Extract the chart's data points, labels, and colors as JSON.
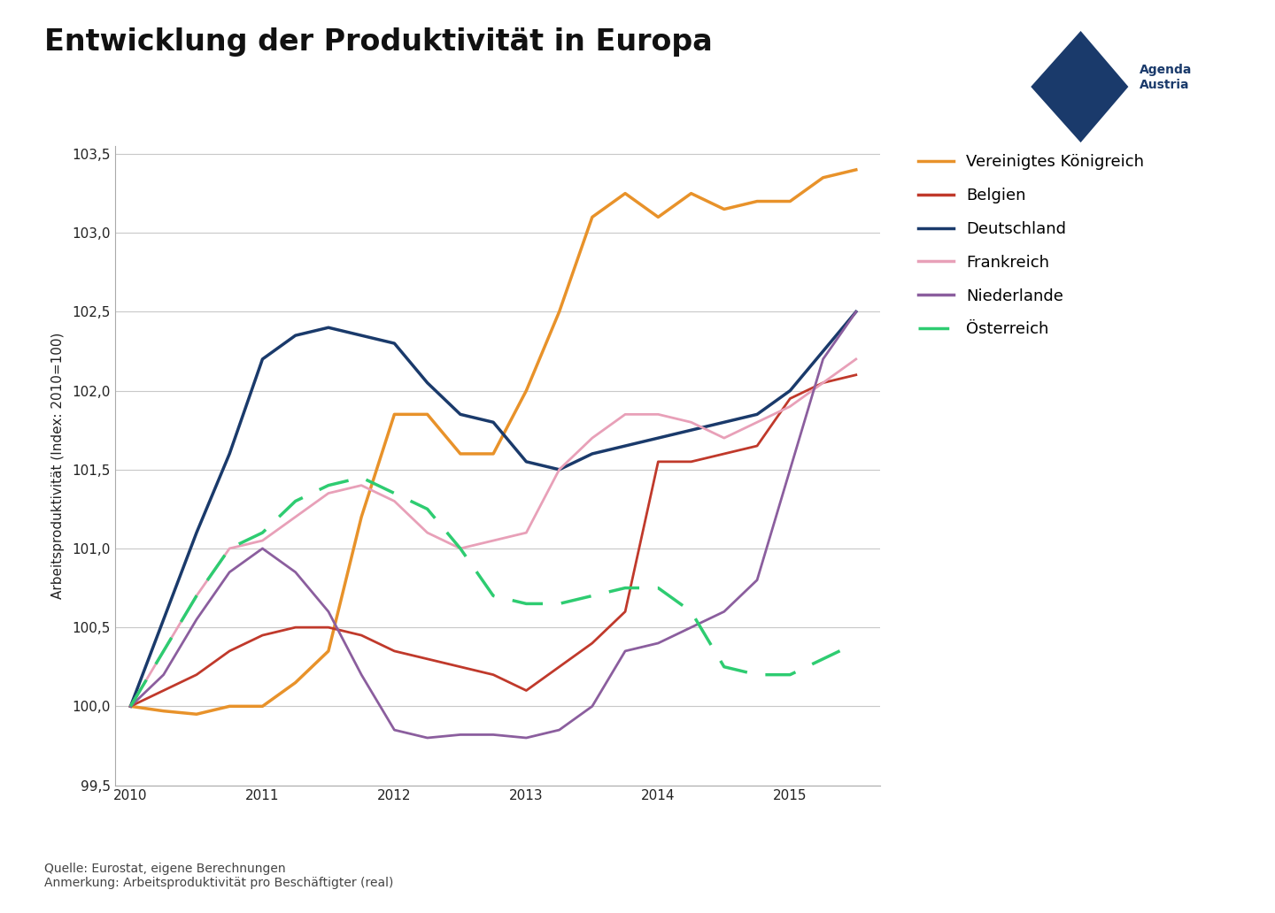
{
  "title": "Entwicklung der Produktivität in Europa",
  "ylabel": "Arbeitsproduktivität (Index: 2010=100)",
  "source_text": "Quelle: Eurostat, eigene Berechnungen\nAnmerkung: Arbeitsproduktivität pro Beschäftigter (real)",
  "ylim": [
    99.5,
    103.55
  ],
  "yticks": [
    99.5,
    100.0,
    100.5,
    101.0,
    101.5,
    102.0,
    102.5,
    103.0,
    103.5
  ],
  "xlim": [
    2009.88,
    2015.68
  ],
  "background_color": "#ffffff",
  "grid_color": "#C8C8C8",
  "series": {
    "Vereinigtes Königreich": {
      "color": "#E8922A",
      "linestyle": "-",
      "linewidth": 2.5,
      "x": [
        2010.0,
        2010.25,
        2010.5,
        2010.75,
        2011.0,
        2011.25,
        2011.5,
        2011.75,
        2012.0,
        2012.25,
        2012.5,
        2012.75,
        2013.0,
        2013.25,
        2013.5,
        2013.75,
        2014.0,
        2014.25,
        2014.5,
        2014.75,
        2015.0,
        2015.25,
        2015.5
      ],
      "y": [
        100.0,
        99.97,
        99.95,
        100.0,
        100.0,
        100.15,
        100.35,
        101.2,
        101.85,
        101.85,
        101.6,
        101.6,
        102.0,
        102.5,
        103.1,
        103.25,
        103.1,
        103.25,
        103.15,
        103.2,
        103.2,
        103.35,
        103.4
      ]
    },
    "Belgien": {
      "color": "#C0392B",
      "linestyle": "-",
      "linewidth": 2.0,
      "x": [
        2010.0,
        2010.25,
        2010.5,
        2010.75,
        2011.0,
        2011.25,
        2011.5,
        2011.75,
        2012.0,
        2012.25,
        2012.5,
        2012.75,
        2013.0,
        2013.25,
        2013.5,
        2013.75,
        2014.0,
        2014.25,
        2014.5,
        2014.75,
        2015.0,
        2015.25,
        2015.5
      ],
      "y": [
        100.0,
        100.1,
        100.2,
        100.35,
        100.45,
        100.5,
        100.5,
        100.45,
        100.35,
        100.3,
        100.25,
        100.2,
        100.1,
        100.25,
        100.4,
        100.6,
        101.55,
        101.55,
        101.6,
        101.65,
        101.95,
        102.05,
        102.1
      ]
    },
    "Deutschland": {
      "color": "#1A3A6B",
      "linestyle": "-",
      "linewidth": 2.5,
      "x": [
        2010.0,
        2010.25,
        2010.5,
        2010.75,
        2011.0,
        2011.25,
        2011.5,
        2011.75,
        2012.0,
        2012.25,
        2012.5,
        2012.75,
        2013.0,
        2013.25,
        2013.5,
        2013.75,
        2014.0,
        2014.25,
        2014.5,
        2014.75,
        2015.0,
        2015.25,
        2015.5
      ],
      "y": [
        100.0,
        100.55,
        101.1,
        101.6,
        102.2,
        102.35,
        102.4,
        102.35,
        102.3,
        102.05,
        101.85,
        101.8,
        101.55,
        101.5,
        101.6,
        101.65,
        101.7,
        101.75,
        101.8,
        101.85,
        102.0,
        102.25,
        102.5
      ]
    },
    "Frankreich": {
      "color": "#E8A0B8",
      "linestyle": "-",
      "linewidth": 2.0,
      "x": [
        2010.0,
        2010.25,
        2010.5,
        2010.75,
        2011.0,
        2011.25,
        2011.5,
        2011.75,
        2012.0,
        2012.25,
        2012.5,
        2012.75,
        2013.0,
        2013.25,
        2013.5,
        2013.75,
        2014.0,
        2014.25,
        2014.5,
        2014.75,
        2015.0,
        2015.25,
        2015.5
      ],
      "y": [
        100.0,
        100.35,
        100.7,
        101.0,
        101.05,
        101.2,
        101.35,
        101.4,
        101.3,
        101.1,
        101.0,
        101.05,
        101.1,
        101.5,
        101.7,
        101.85,
        101.85,
        101.8,
        101.7,
        101.8,
        101.9,
        102.05,
        102.2
      ]
    },
    "Niederlande": {
      "color": "#8B5E9E",
      "linestyle": "-",
      "linewidth": 2.0,
      "x": [
        2010.0,
        2010.25,
        2010.5,
        2010.75,
        2011.0,
        2011.25,
        2011.5,
        2011.75,
        2012.0,
        2012.25,
        2012.5,
        2012.75,
        2013.0,
        2013.25,
        2013.5,
        2013.75,
        2014.0,
        2014.25,
        2014.5,
        2014.75,
        2015.0,
        2015.25,
        2015.5
      ],
      "y": [
        100.0,
        100.2,
        100.55,
        100.85,
        101.0,
        100.85,
        100.6,
        100.2,
        99.85,
        99.8,
        99.82,
        99.82,
        99.8,
        99.85,
        100.0,
        100.35,
        100.4,
        100.5,
        100.6,
        100.8,
        101.5,
        102.2,
        102.5
      ]
    },
    "Österreich": {
      "color": "#2ECC71",
      "linestyle": "--",
      "linewidth": 2.5,
      "dashes": [
        10,
        6
      ],
      "x": [
        2010.0,
        2010.25,
        2010.5,
        2010.75,
        2011.0,
        2011.25,
        2011.5,
        2011.75,
        2012.0,
        2012.25,
        2012.5,
        2012.75,
        2013.0,
        2013.25,
        2013.5,
        2013.75,
        2014.0,
        2014.25,
        2014.5,
        2014.75,
        2015.0,
        2015.25,
        2015.5
      ],
      "y": [
        100.0,
        100.35,
        100.7,
        101.0,
        101.1,
        101.3,
        101.4,
        101.45,
        101.35,
        101.25,
        101.0,
        100.7,
        100.65,
        100.65,
        100.7,
        100.75,
        100.75,
        100.6,
        100.25,
        100.2,
        100.2,
        100.3,
        100.4
      ]
    }
  },
  "legend_order": [
    "Vereinigtes Königreich",
    "Belgien",
    "Deutschland",
    "Frankreich",
    "Niederlande",
    "Österreich"
  ],
  "title_fontsize": 24,
  "axis_fontsize": 11,
  "legend_fontsize": 13,
  "source_fontsize": 10
}
